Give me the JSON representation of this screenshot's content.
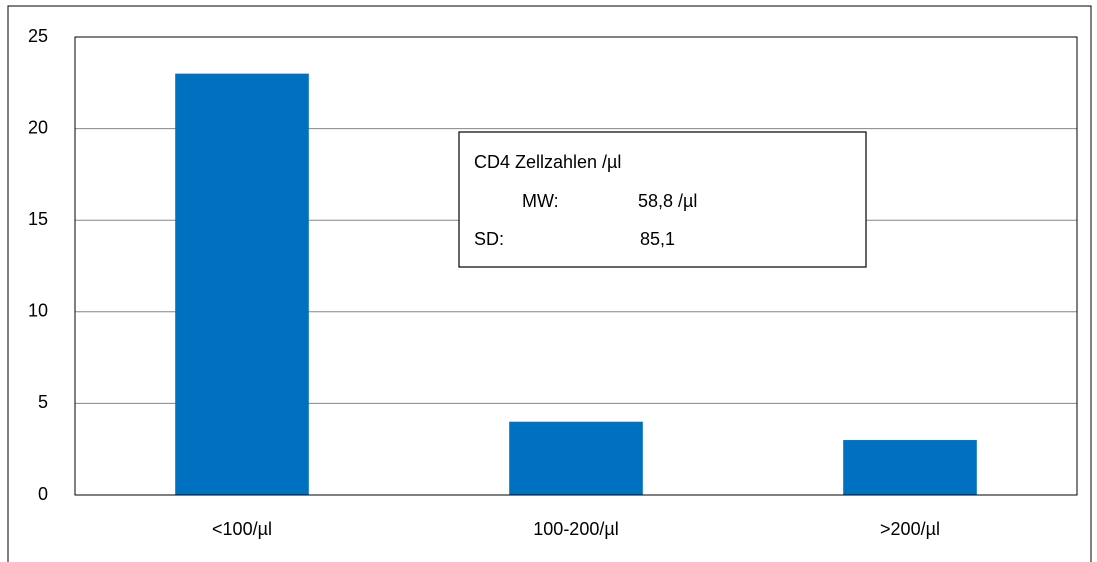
{
  "chart_data": {
    "type": "bar",
    "categories": [
      "<100/µl",
      "100-200/µl",
      ">200/µl"
    ],
    "values": [
      23,
      4,
      3
    ],
    "color": "#0070c0",
    "ylim": [
      0,
      25
    ],
    "yticks": [
      0,
      5,
      10,
      15,
      20,
      25
    ],
    "grid": true,
    "annotation": {
      "title": "CD4 Zellzahlen /µl",
      "rows": [
        [
          "MW:",
          "58,8 /µl"
        ],
        [
          "SD:",
          "85,1"
        ]
      ]
    }
  }
}
